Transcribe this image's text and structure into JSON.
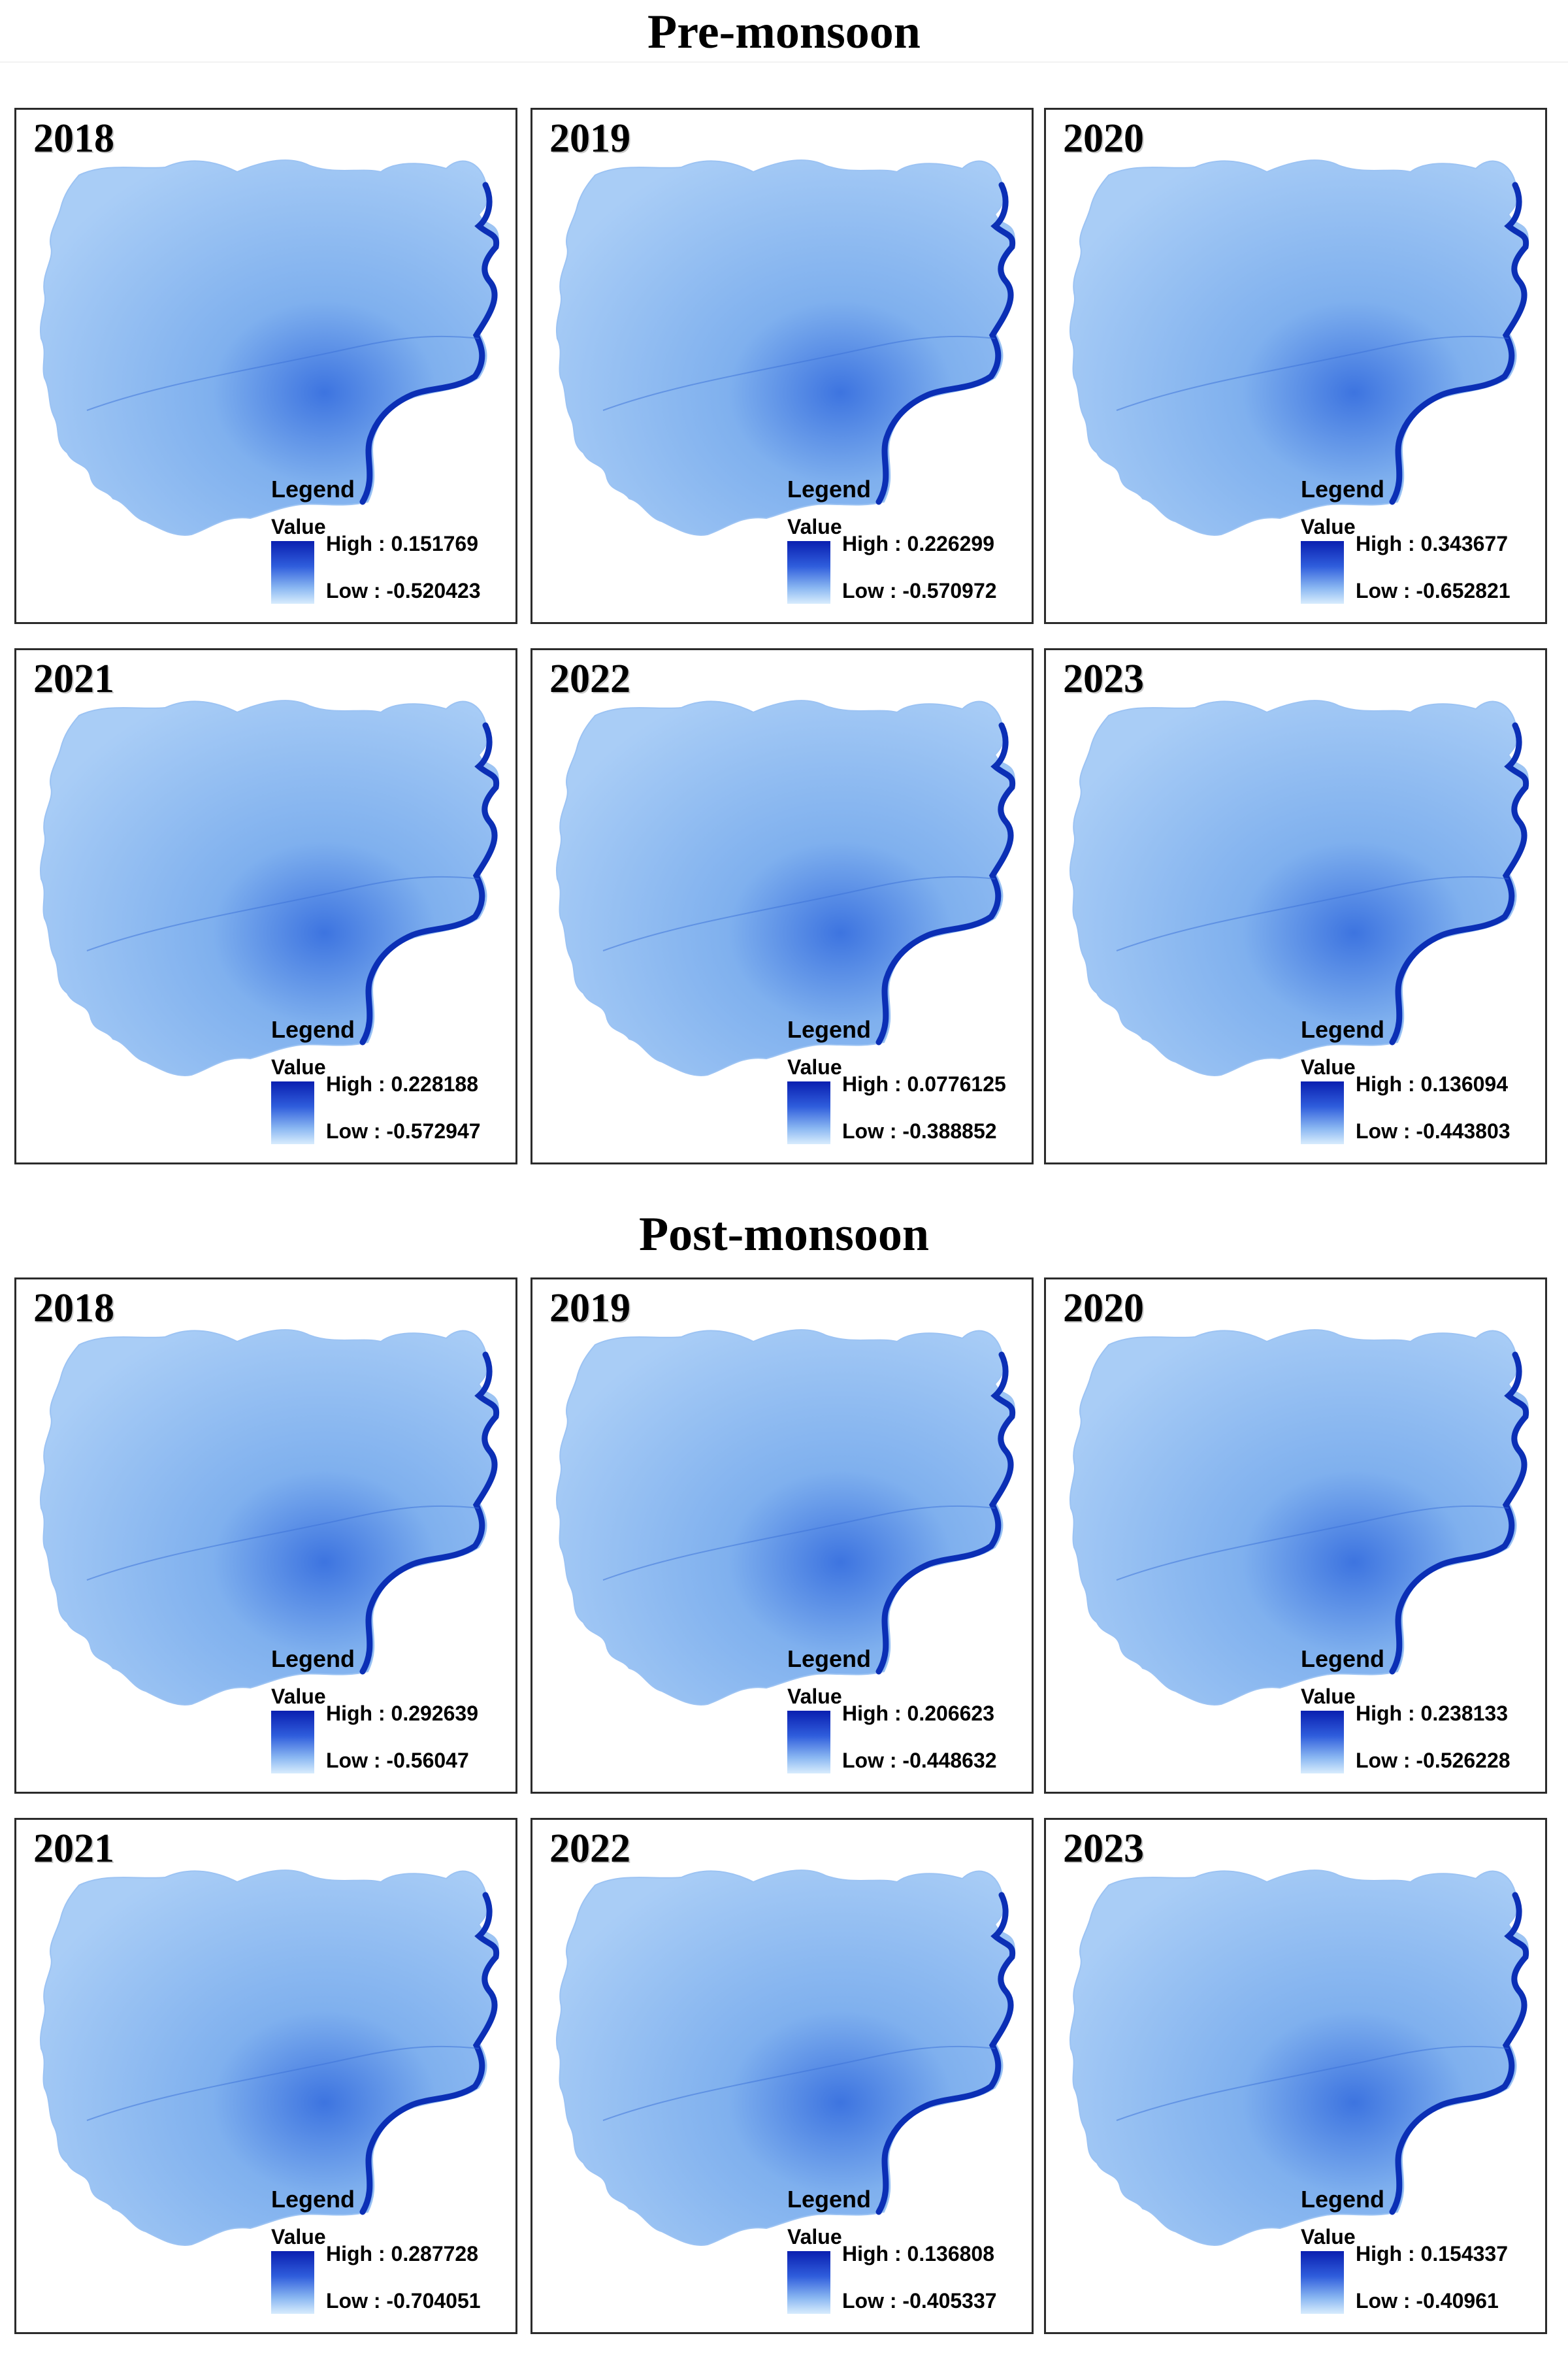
{
  "sections": [
    {
      "title": "Pre-monsoon",
      "panels": [
        {
          "year": "2018",
          "legend_title": "Legend",
          "value_label": "Value",
          "high": "High : 0.151769",
          "low": "Low : -0.520423",
          "high_value": 0.151769,
          "low_value": -0.520423
        },
        {
          "year": "2019",
          "legend_title": "Legend",
          "value_label": "Value",
          "high": "High : 0.226299",
          "low": "Low : -0.570972",
          "high_value": 0.226299,
          "low_value": -0.570972
        },
        {
          "year": "2020",
          "legend_title": "Legend",
          "value_label": "Value",
          "high": "High : 0.343677",
          "low": "Low : -0.652821",
          "high_value": 0.343677,
          "low_value": -0.652821
        },
        {
          "year": "2021",
          "legend_title": "Legend",
          "value_label": "Value",
          "high": "High : 0.228188",
          "low": "Low : -0.572947",
          "high_value": 0.228188,
          "low_value": -0.572947
        },
        {
          "year": "2022",
          "legend_title": "Legend",
          "value_label": "Value",
          "high": "High : 0.0776125",
          "low": "Low : -0.388852",
          "high_value": 0.0776125,
          "low_value": -0.388852
        },
        {
          "year": "2023",
          "legend_title": "Legend",
          "value_label": "Value",
          "high": "High : 0.136094",
          "low": "Low : -0.443803",
          "high_value": 0.136094,
          "low_value": -0.443803
        }
      ]
    },
    {
      "title": "Post-monsoon",
      "panels": [
        {
          "year": "2018",
          "legend_title": "Legend",
          "value_label": "Value",
          "high": "High : 0.292639",
          "low": "Low : -0.56047",
          "high_value": 0.292639,
          "low_value": -0.56047
        },
        {
          "year": "2019",
          "legend_title": "Legend",
          "value_label": "Value",
          "high": "High : 0.206623",
          "low": "Low : -0.448632",
          "high_value": 0.206623,
          "low_value": -0.448632
        },
        {
          "year": "2020",
          "legend_title": "Legend",
          "value_label": "Value",
          "high": "High : 0.238133",
          "low": "Low : -0.526228",
          "high_value": 0.238133,
          "low_value": -0.526228
        },
        {
          "year": "2021",
          "legend_title": "Legend",
          "value_label": "Value",
          "high": "High : 0.287728",
          "low": "Low : -0.704051",
          "high_value": 0.287728,
          "low_value": -0.704051
        },
        {
          "year": "2022",
          "legend_title": "Legend",
          "value_label": "Value",
          "high": "High : 0.136808",
          "low": "Low : -0.405337",
          "high_value": 0.136808,
          "low_value": -0.405337
        },
        {
          "year": "2023",
          "legend_title": "Legend",
          "value_label": "Value",
          "high": "High : 0.154337",
          "low": "Low : -0.40961",
          "high_value": 0.154337,
          "low_value": -0.40961
        }
      ]
    }
  ],
  "colors": {
    "ramp_high": "#0a1fb0",
    "ramp_low": "#d8ecfd",
    "map_fill": "#7fb0ee",
    "map_fill_light": "#a9cdf6",
    "river": "#0b2fb5",
    "panel_border": "#2b2b2b"
  }
}
